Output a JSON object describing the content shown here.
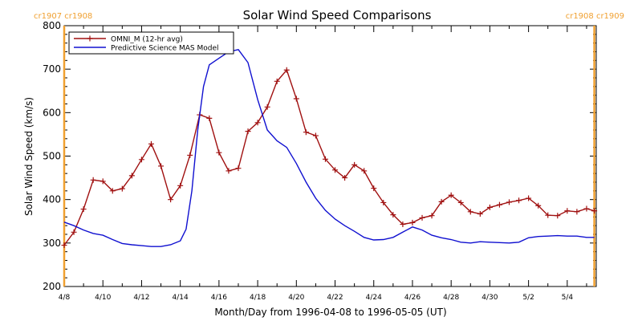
{
  "chart_data": {
    "type": "line",
    "title": "Solar Wind Speed Comparisons",
    "xlabel": "Month/Day from 1996-04-08 to 1996-05-05 (UT)",
    "ylabel": "Solar Wind Speed (km/s)",
    "xlim": [
      0,
      27.5
    ],
    "ylim": [
      200,
      800
    ],
    "yticks": [
      200,
      300,
      400,
      500,
      600,
      700,
      800
    ],
    "xticks": [
      {
        "x": 0,
        "label": "4/8"
      },
      {
        "x": 2,
        "label": "4/10"
      },
      {
        "x": 4,
        "label": "4/12"
      },
      {
        "x": 6,
        "label": "4/14"
      },
      {
        "x": 8,
        "label": "4/16"
      },
      {
        "x": 10,
        "label": "4/18"
      },
      {
        "x": 12,
        "label": "4/20"
      },
      {
        "x": 14,
        "label": "4/22"
      },
      {
        "x": 16,
        "label": "4/24"
      },
      {
        "x": 18,
        "label": "4/26"
      },
      {
        "x": 20,
        "label": "4/28"
      },
      {
        "x": 22,
        "label": "4/30"
      },
      {
        "x": 24,
        "label": "5/2"
      },
      {
        "x": 26,
        "label": "5/4"
      }
    ],
    "carrington_markers": [
      {
        "x": 0,
        "label": "cr1907  cr1908",
        "align": "left"
      },
      {
        "x": 27.4,
        "label": "cr1908  cr1909",
        "align": "right"
      }
    ],
    "marker_color": "#f0a030",
    "legend_placement": "top-left",
    "series": [
      {
        "name": "OMNI_M (12-hr avg)",
        "color": "#a01010",
        "marker": "plus",
        "x": [
          0,
          0.5,
          1,
          1.5,
          2,
          2.5,
          3,
          3.5,
          4,
          4.5,
          5,
          5.5,
          6,
          6.5,
          7,
          7.5,
          8,
          8.5,
          9,
          9.5,
          10,
          10.5,
          11,
          11.5,
          12,
          12.5,
          13,
          13.5,
          14,
          14.5,
          15,
          15.5,
          16,
          16.5,
          17,
          17.5,
          18,
          18.5,
          19,
          19.5,
          20,
          20.5,
          21,
          21.5,
          22,
          22.5,
          23,
          23.5,
          24,
          24.5,
          25,
          25.5,
          26,
          26.5,
          27,
          27.4
        ],
        "y": [
          295,
          325,
          378,
          445,
          442,
          420,
          425,
          455,
          492,
          528,
          477,
          400,
          432,
          502,
          595,
          587,
          508,
          466,
          472,
          557,
          577,
          613,
          672,
          698,
          632,
          555,
          547,
          493,
          468,
          450,
          480,
          466,
          426,
          393,
          365,
          343,
          347,
          358,
          363,
          395,
          410,
          393,
          372,
          367,
          382,
          388,
          394,
          398,
          403,
          386,
          364,
          363,
          374,
          372,
          379,
          374
        ]
      },
      {
        "name": "Predictive Science MAS Model",
        "color": "#1010d0",
        "marker": "none",
        "x": [
          0,
          0.5,
          1,
          1.5,
          2,
          2.5,
          3,
          3.5,
          4,
          4.5,
          5,
          5.5,
          6,
          6.3,
          6.6,
          6.9,
          7.2,
          7.5,
          8,
          8.5,
          9,
          9.5,
          10,
          10.5,
          11,
          11.5,
          12,
          12.5,
          13,
          13.5,
          14,
          14.5,
          15,
          15.5,
          16,
          16.5,
          17,
          17.5,
          18,
          18.5,
          19,
          19.5,
          20,
          20.5,
          21,
          21.5,
          22,
          22.5,
          23,
          23.5,
          24,
          24.5,
          25,
          25.5,
          26,
          26.5,
          27,
          27.4
        ],
        "y": [
          348,
          340,
          330,
          322,
          318,
          308,
          299,
          296,
          294,
          292,
          292,
          296,
          305,
          332,
          420,
          560,
          660,
          710,
          725,
          740,
          745,
          715,
          630,
          560,
          535,
          520,
          483,
          440,
          403,
          375,
          355,
          340,
          327,
          313,
          307,
          308,
          313,
          325,
          337,
          330,
          318,
          312,
          308,
          302,
          300,
          303,
          302,
          301,
          300,
          302,
          312,
          315,
          316,
          317,
          316,
          316,
          313,
          313
        ]
      }
    ]
  }
}
